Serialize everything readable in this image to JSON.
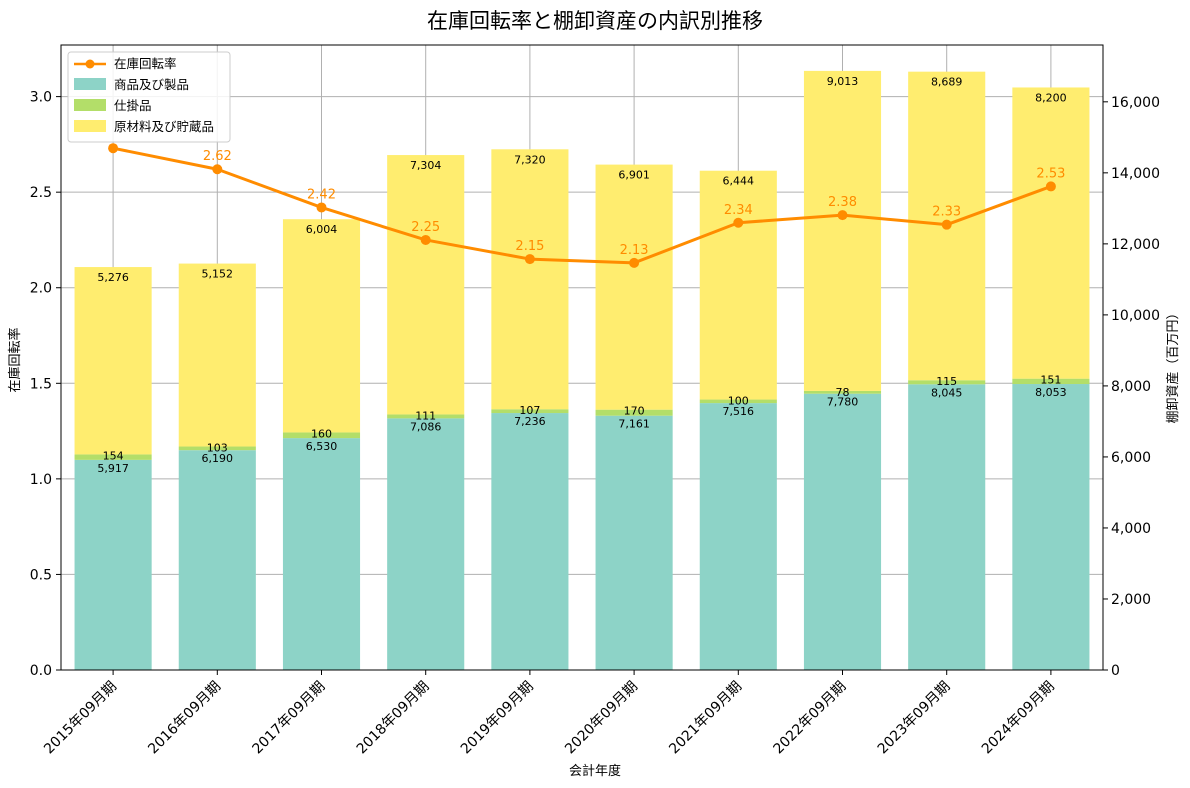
{
  "chart_data": {
    "type": "bar+line",
    "title": "在庫回転率と棚卸資産の内訳別推移",
    "xlabel": "会計年度",
    "ylabel_left": "在庫回転率",
    "ylabel_right": "棚卸資産（百万円）",
    "ylim_left": [
      0,
      3.27
    ],
    "ylim_right": [
      0,
      17600
    ],
    "yticks_left": [
      "0.0",
      "0.5",
      "1.0",
      "1.5",
      "2.0",
      "2.5",
      "3.0"
    ],
    "yticks_right": [
      "0",
      "2,000",
      "4,000",
      "6,000",
      "8,000",
      "10,000",
      "12,000",
      "14,000",
      "16,000"
    ],
    "categories": [
      "2015年09月期",
      "2016年09月期",
      "2017年09月期",
      "2018年09月期",
      "2019年09月期",
      "2020年09月期",
      "2021年09月期",
      "2022年09月期",
      "2023年09月期",
      "2024年09月期"
    ],
    "grid": true,
    "legend_position": "top-left",
    "bar_series": [
      {
        "name": "商品及び製品",
        "color": "#8dd3c7",
        "values": [
          5917,
          6190,
          6530,
          7086,
          7236,
          7161,
          7516,
          7780,
          8045,
          8053
        ]
      },
      {
        "name": "仕掛品",
        "color": "#b3de69",
        "values": [
          154,
          103,
          160,
          111,
          107,
          170,
          100,
          78,
          115,
          151
        ]
      },
      {
        "name": "原材料及び貯蔵品",
        "color": "#ffed6f",
        "values": [
          5276,
          5152,
          6004,
          7304,
          7320,
          6901,
          6444,
          9013,
          8689,
          8200
        ]
      }
    ],
    "line_series": {
      "name": "在庫回転率",
      "color": "#ff8c00",
      "values": [
        2.73,
        2.62,
        2.42,
        2.25,
        2.15,
        2.13,
        2.34,
        2.38,
        2.33,
        2.53
      ],
      "labels": [
        "",
        "2.62",
        "2.42",
        "2.25",
        "2.15",
        "2.13",
        "2.34",
        "2.38",
        "2.33",
        "2.53"
      ]
    }
  }
}
